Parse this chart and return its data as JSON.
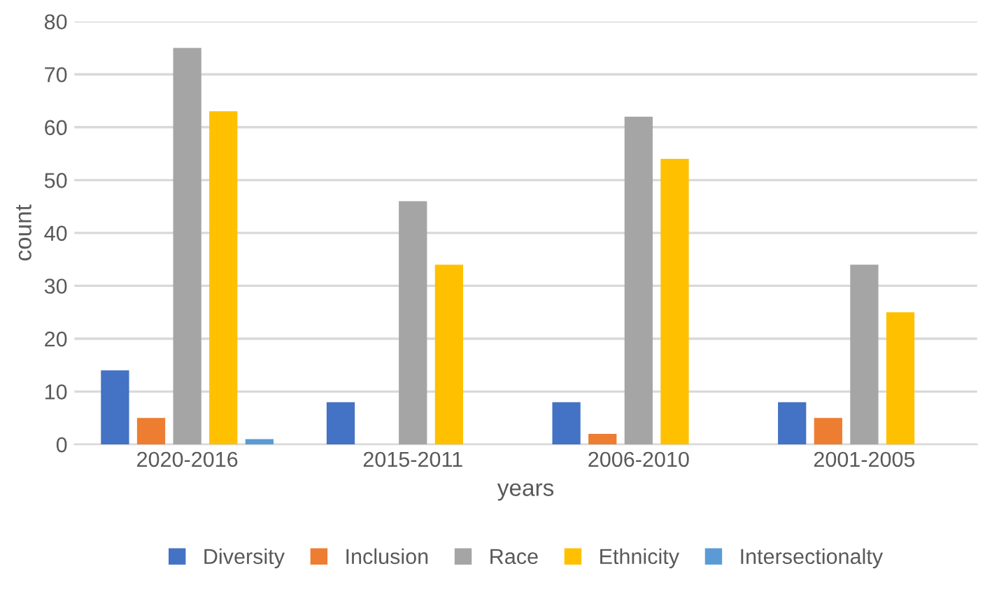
{
  "chart_data": {
    "type": "bar",
    "xlabel": "years",
    "ylabel": "count",
    "categories": [
      "2020-2016",
      "2015-2011",
      "2006-2010",
      "2001-2005"
    ],
    "series": [
      {
        "name": "Diversity",
        "color": "#4472c4",
        "values": [
          14,
          8,
          8,
          8
        ]
      },
      {
        "name": "Inclusion",
        "color": "#ed7d31",
        "values": [
          5,
          0,
          2,
          5
        ]
      },
      {
        "name": "Race",
        "color": "#a5a5a5",
        "values": [
          75,
          46,
          62,
          34
        ]
      },
      {
        "name": "Ethnicity",
        "color": "#ffc000",
        "values": [
          63,
          34,
          54,
          25
        ]
      },
      {
        "name": "Intersectionalty",
        "color": "#5b9bd5",
        "values": [
          1,
          0,
          0,
          0
        ]
      }
    ],
    "ylim": [
      0,
      80
    ],
    "yticks": [
      0,
      10,
      20,
      30,
      40,
      50,
      60,
      70,
      80
    ],
    "grid": "y",
    "legend": "bottom"
  }
}
